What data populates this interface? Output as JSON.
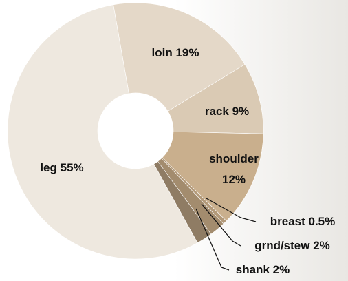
{
  "chart_data": {
    "type": "donut",
    "categories": [
      "loin",
      "rack",
      "shoulder",
      "breast",
      "grnd/stew",
      "shank",
      "leg"
    ],
    "values": [
      19,
      9,
      12,
      0.5,
      2,
      2,
      55
    ],
    "value_labels": [
      "19%",
      "9%",
      "12%",
      "0.5%",
      "2%",
      "2%",
      "55%"
    ],
    "colors": [
      "#e4d8c8",
      "#dacab4",
      "#c9af8d",
      "#b39a7a",
      "#a38c6e",
      "#8f7c64",
      "#eee8df"
    ]
  }
}
